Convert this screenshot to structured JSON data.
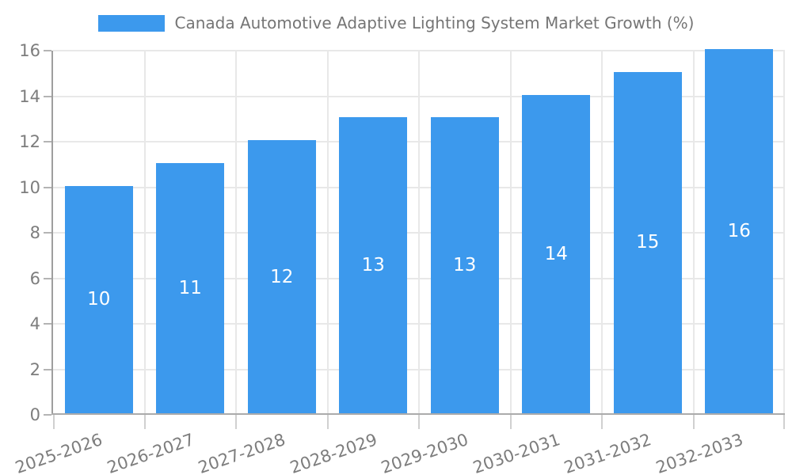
{
  "legend": {
    "label": "Canada Automotive Adaptive Lighting System Market Growth (%)"
  },
  "colors": {
    "bar": "#3C99ED",
    "grid": "#E8E8E8",
    "axis": "#9E9E9E",
    "tick": "#B4B4B4",
    "tick_text": "#7D7D7D",
    "legend_text": "#757575",
    "bar_label_text": "#FFFFFF",
    "background": "#FFFFFF"
  },
  "chart_data": {
    "type": "bar",
    "title": "Canada Automotive Adaptive Lighting System Market Growth (%)",
    "categories": [
      "2025-2026",
      "2026-2027",
      "2027-2028",
      "2028-2029",
      "2029-2030",
      "2030-2031",
      "2031-2032",
      "2032-2033"
    ],
    "values": [
      10,
      11,
      12,
      13,
      13,
      14,
      15,
      16
    ],
    "bar_labels": [
      "10",
      "11",
      "12",
      "13",
      "13",
      "14",
      "15",
      "16"
    ],
    "xlabel": "",
    "ylabel": "",
    "ylim": [
      0,
      16
    ],
    "ytick_step": 2,
    "yticks": [
      0,
      2,
      4,
      6,
      8,
      10,
      12,
      14,
      16
    ],
    "grid": "both",
    "grid_at_category_boundaries": true,
    "legend_position": "top-center",
    "x_label_rotation_deg": -19,
    "value_labels": "inside-center"
  }
}
